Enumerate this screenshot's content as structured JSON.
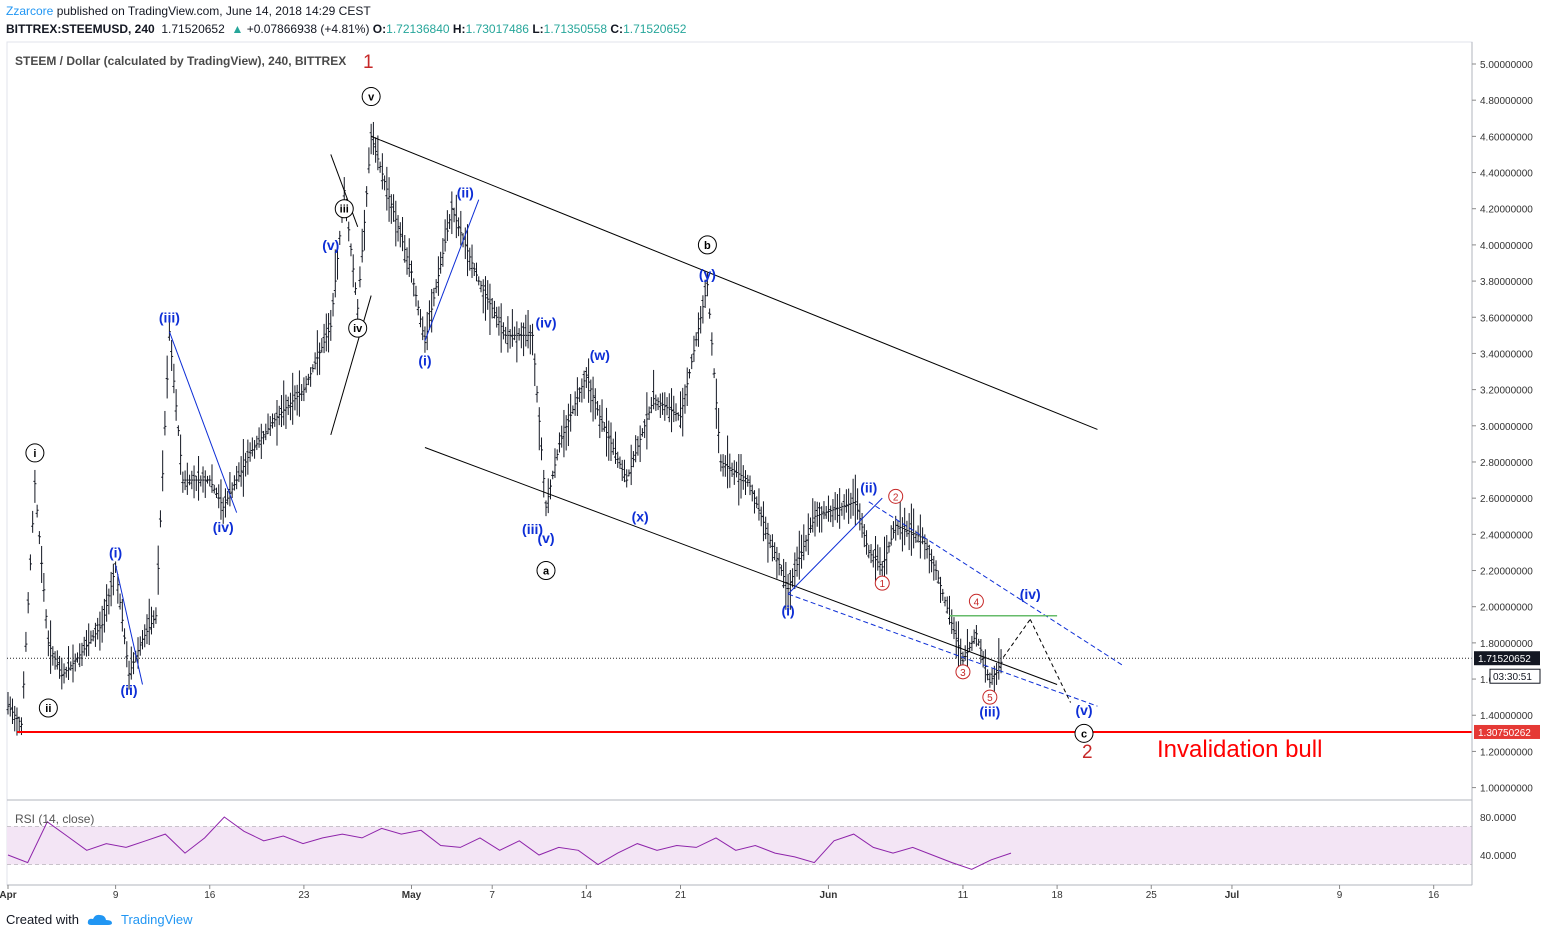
{
  "header": {
    "publisher": "Zzarcore",
    "published_text": "published on TradingView.com, June 14, 2018 14:29 CEST",
    "symbol": "BITTREX:STEEMUSD, 240",
    "last": "1.71520652",
    "change": "+0.07866938 (+4.81%)",
    "o_label": "O:",
    "o_value": "1.72136840",
    "h_label": "H:",
    "h_value": "1.73017486",
    "l_label": "L:",
    "l_value": "1.71350558",
    "c_label": "C:",
    "c_value": "1.71520652"
  },
  "footer": {
    "created_with": "Created with",
    "brand": "TradingView"
  },
  "colors": {
    "bars": "#131722",
    "channel": "#000000",
    "wave_blue": "#0d2ed6",
    "count_red": "#c62828",
    "invalidation": "#ff0000",
    "rsi_line": "#8e24aa",
    "rsi_band": "#f3e5f5",
    "support_green": "#66bb6a",
    "price_tag": "#131722"
  },
  "chart_data": {
    "type": "candlestick",
    "title": "STEEM / Dollar (calculated by TradingView), 240, BITTREX",
    "pane_count_label": "1",
    "current_price": 1.71520652,
    "current_price_label": "1.71520652",
    "countdown_label": "03:30:51",
    "invalidation_price": 1.3075026,
    "invalidation_price_label": "1.30750262",
    "invalidation_text": "Invalidation bull",
    "count_label_2": "2",
    "ylim": [
      0.85,
      5.1
    ],
    "y_ticks": [
      "5.00000000",
      "4.80000000",
      "4.60000000",
      "4.40000000",
      "4.20000000",
      "4.00000000",
      "3.80000000",
      "3.60000000",
      "3.40000000",
      "3.20000000",
      "3.00000000",
      "2.80000000",
      "2.60000000",
      "2.40000000",
      "2.20000000",
      "2.00000000",
      "1.80000000",
      "1.60000000",
      "1.40000000",
      "1.20000000",
      "1.00000000"
    ],
    "x_ticks": [
      {
        "label": "Apr",
        "day": 1
      },
      {
        "label": "9",
        "day": 9
      },
      {
        "label": "16",
        "day": 16
      },
      {
        "label": "23",
        "day": 23
      },
      {
        "label": "May",
        "day": 31
      },
      {
        "label": "7",
        "day": 37
      },
      {
        "label": "14",
        "day": 44
      },
      {
        "label": "21",
        "day": 51
      },
      {
        "label": "Jun",
        "day": 62
      },
      {
        "label": "11",
        "day": 72
      },
      {
        "label": "18",
        "day": 79
      },
      {
        "label": "25",
        "day": 86
      },
      {
        "label": "Jul",
        "day": 92
      },
      {
        "label": "9",
        "day": 100
      },
      {
        "label": "16",
        "day": 107
      }
    ],
    "price_path": [
      {
        "date": "2018-04-01",
        "close": 1.45
      },
      {
        "date": "2018-04-02",
        "close": 1.35
      },
      {
        "date": "2018-04-03",
        "close": 2.68
      },
      {
        "date": "2018-04-04",
        "close": 1.8
      },
      {
        "date": "2018-04-05",
        "close": 1.62
      },
      {
        "date": "2018-04-06",
        "close": 1.7
      },
      {
        "date": "2018-04-08",
        "close": 1.9
      },
      {
        "date": "2018-04-09",
        "close": 2.22
      },
      {
        "date": "2018-04-10",
        "close": 1.63
      },
      {
        "date": "2018-04-11",
        "close": 1.82
      },
      {
        "date": "2018-04-12",
        "close": 1.95
      },
      {
        "date": "2018-04-13",
        "close": 3.52
      },
      {
        "date": "2018-04-14",
        "close": 2.7
      },
      {
        "date": "2018-04-16",
        "close": 2.7
      },
      {
        "date": "2018-04-17",
        "close": 2.55
      },
      {
        "date": "2018-04-19",
        "close": 2.85
      },
      {
        "date": "2018-04-21",
        "close": 3.05
      },
      {
        "date": "2018-04-23",
        "close": 3.2
      },
      {
        "date": "2018-04-25",
        "close": 3.55
      },
      {
        "date": "2018-04-26",
        "close": 4.3
      },
      {
        "date": "2018-04-27",
        "close": 3.65
      },
      {
        "date": "2018-04-28",
        "close": 4.6
      },
      {
        "date": "2018-04-30",
        "close": 4.1
      },
      {
        "date": "2018-05-01",
        "close": 3.85
      },
      {
        "date": "2018-05-02",
        "close": 3.46
      },
      {
        "date": "2018-05-04",
        "close": 4.2
      },
      {
        "date": "2018-05-06",
        "close": 3.8
      },
      {
        "date": "2018-05-08",
        "close": 3.5
      },
      {
        "date": "2018-05-10",
        "close": 3.5
      },
      {
        "date": "2018-05-11",
        "close": 2.55
      },
      {
        "date": "2018-05-12",
        "close": 2.9
      },
      {
        "date": "2018-05-14",
        "close": 3.28
      },
      {
        "date": "2018-05-15",
        "close": 3.05
      },
      {
        "date": "2018-05-17",
        "close": 2.7
      },
      {
        "date": "2018-05-19",
        "close": 3.15
      },
      {
        "date": "2018-05-21",
        "close": 3.05
      },
      {
        "date": "2018-05-23",
        "close": 3.78
      },
      {
        "date": "2018-05-24",
        "close": 2.8
      },
      {
        "date": "2018-05-26",
        "close": 2.7
      },
      {
        "date": "2018-05-29",
        "close": 2.1
      },
      {
        "date": "2018-05-31",
        "close": 2.5
      },
      {
        "date": "2018-06-03",
        "close": 2.58
      },
      {
        "date": "2018-06-04",
        "close": 2.3
      },
      {
        "date": "2018-06-05",
        "close": 2.22
      },
      {
        "date": "2018-06-06",
        "close": 2.45
      },
      {
        "date": "2018-06-08",
        "close": 2.38
      },
      {
        "date": "2018-06-09",
        "close": 2.2
      },
      {
        "date": "2018-06-10",
        "close": 1.95
      },
      {
        "date": "2018-06-11",
        "close": 1.7
      },
      {
        "date": "2018-06-12",
        "close": 1.85
      },
      {
        "date": "2018-06-13",
        "close": 1.58
      },
      {
        "date": "2018-06-14",
        "close": 1.715
      }
    ],
    "rsi": {
      "label": "RSI (14, close)",
      "ylim": [
        20,
        90
      ],
      "y_ticks": [
        "80.0000",
        "40.0000"
      ],
      "band": [
        30,
        70
      ],
      "values": [
        40,
        32,
        75,
        60,
        45,
        52,
        48,
        55,
        62,
        42,
        58,
        80,
        65,
        55,
        60,
        52,
        58,
        62,
        58,
        68,
        62,
        66,
        50,
        48,
        58,
        45,
        55,
        40,
        48,
        45,
        30,
        42,
        52,
        45,
        50,
        48,
        58,
        45,
        50,
        42,
        38,
        32,
        55,
        62,
        48,
        42,
        48,
        40,
        32,
        25,
        35,
        42
      ]
    },
    "wave_labels": [
      {
        "text": "1",
        "style": "red-count"
      },
      {
        "text": "v",
        "style": "black-circle"
      },
      {
        "text": "iii",
        "style": "black-circle"
      },
      {
        "text": "iv",
        "style": "black-circle"
      },
      {
        "text": "i",
        "style": "black-circle"
      },
      {
        "text": "ii",
        "style": "black-circle"
      },
      {
        "text": "b",
        "style": "black-circle"
      },
      {
        "text": "a",
        "style": "black-circle"
      },
      {
        "text": "c",
        "style": "black-circle"
      },
      {
        "text": "(i)",
        "style": "blue"
      },
      {
        "text": "(ii)",
        "style": "blue"
      },
      {
        "text": "(iii)",
        "style": "blue"
      },
      {
        "text": "(iv)",
        "style": "blue"
      },
      {
        "text": "(v)",
        "style": "blue"
      },
      {
        "text": "(i)",
        "style": "blue"
      },
      {
        "text": "(ii)",
        "style": "blue"
      },
      {
        "text": "(iii)",
        "style": "blue"
      },
      {
        "text": "(iv)",
        "style": "blue"
      },
      {
        "text": "(v)",
        "style": "blue"
      },
      {
        "text": "(w)",
        "style": "blue"
      },
      {
        "text": "(x)",
        "style": "blue"
      },
      {
        "text": "(y)",
        "style": "blue"
      },
      {
        "text": "(i)",
        "style": "blue"
      },
      {
        "text": "(ii)",
        "style": "blue"
      },
      {
        "text": "(iii)",
        "style": "blue"
      },
      {
        "text": "(iv)",
        "style": "blue"
      },
      {
        "text": "(v)",
        "style": "blue"
      },
      {
        "text": "1",
        "style": "red-circle"
      },
      {
        "text": "2",
        "style": "red-circle"
      },
      {
        "text": "3",
        "style": "red-circle"
      },
      {
        "text": "4",
        "style": "red-circle"
      },
      {
        "text": "5",
        "style": "red-circle"
      }
    ]
  }
}
